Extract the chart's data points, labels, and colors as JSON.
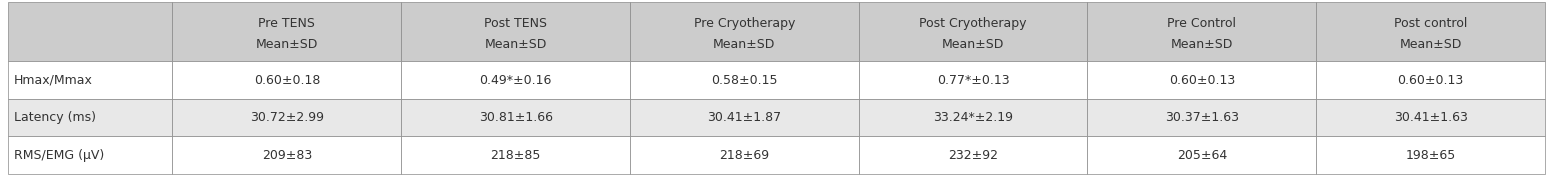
{
  "col_headers": [
    [
      "Pre TENS",
      "Mean±SD"
    ],
    [
      "Post TENS",
      "Mean±SD"
    ],
    [
      "Pre Cryotherapy",
      "Mean±SD"
    ],
    [
      "Post Cryotherapy",
      "Mean±SD"
    ],
    [
      "Pre Control",
      "Mean±SD"
    ],
    [
      "Post control",
      "Mean±SD"
    ]
  ],
  "row_labels": [
    "Hmax/Mmax",
    "Latency (ms)",
    "RMS/EMG (μV)"
  ],
  "table_data": [
    [
      "0.60±0.18",
      "0.49*±0.16",
      "0.58±0.15",
      "0.77*±0.13",
      "0.60±0.13",
      "0.60±0.13"
    ],
    [
      "30.72±2.99",
      "30.81±1.66",
      "30.41±1.87",
      "33.24*±2.19",
      "30.37±1.63",
      "30.41±1.63"
    ],
    [
      "209±83",
      "218±85",
      "218±69",
      "232±92",
      "205±64",
      "198±65"
    ]
  ],
  "header_bg": "#cccccc",
  "row_bg_white": "#ffffff",
  "row_bg_gray": "#e8e8e8",
  "text_color": "#333333",
  "border_color": "#888888",
  "font_size": 9.0,
  "header_font_size": 9.0,
  "fig_width": 15.49,
  "fig_height": 1.76,
  "dpi": 100
}
